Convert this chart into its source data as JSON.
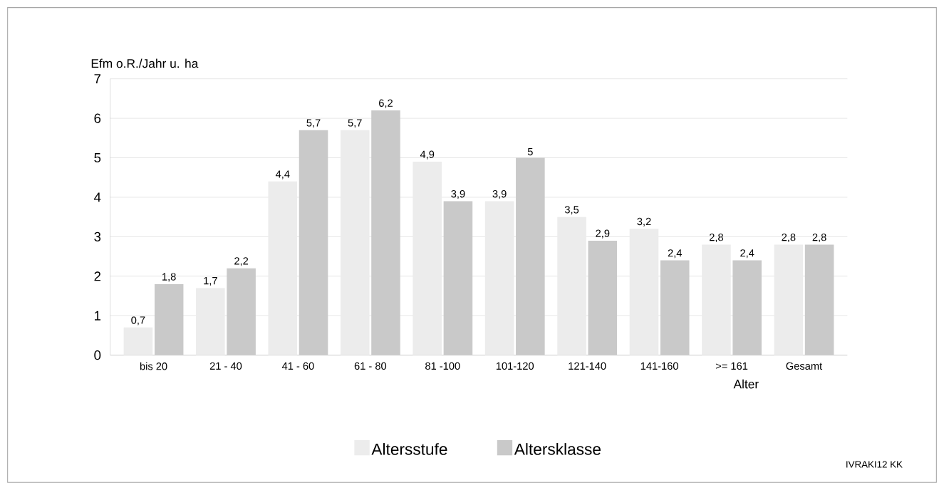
{
  "chart_data": {
    "type": "bar",
    "ylabel": "Efm o.R./Jahr u. ha",
    "xlabel": "Alter",
    "categories": [
      "bis 20",
      "21 - 40",
      "41 - 60",
      "61 - 80",
      "81 -100",
      "101-120",
      "121-140",
      "141-160",
      ">= 161",
      "Gesamt"
    ],
    "series": [
      {
        "name": "Altersstufe",
        "color": "#ececec",
        "values": [
          0.7,
          1.7,
          4.4,
          5.7,
          4.9,
          3.9,
          3.5,
          3.2,
          2.8,
          2.8
        ],
        "value_labels": [
          "0,7",
          "1,7",
          "4,4",
          "5,7",
          "4,9",
          "3,9",
          "3,5",
          "3,2",
          "2,8",
          "2,8"
        ]
      },
      {
        "name": "Altersklasse",
        "color": "#c9c9c9",
        "values": [
          1.8,
          2.2,
          5.7,
          6.2,
          3.9,
          5,
          2.9,
          2.4,
          2.4,
          2.8
        ],
        "value_labels": [
          "1,8",
          "2,2",
          "5,7",
          "6,2",
          "3,9",
          "5",
          "2,9",
          "2,4",
          "2,4",
          "2,8"
        ]
      }
    ],
    "ylim": [
      0,
      7
    ],
    "yticks": [
      0,
      1,
      2,
      3,
      4,
      5,
      6,
      7
    ],
    "grid": "y",
    "legend": "bottom",
    "annotations": [
      "IVRAKI12  KK"
    ]
  }
}
